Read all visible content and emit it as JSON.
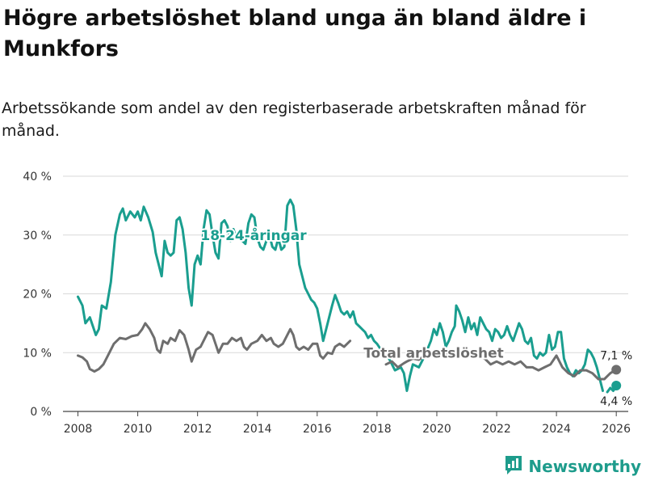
{
  "title": "Högre arbetslöshet bland unga än bland äldre i Munkfors",
  "subtitle": "Arbetssökande som andel av den registerbaserade arbetskraften månad för månad.",
  "brand": {
    "name": "Newsworthy",
    "icon": "bar-chart-logo-icon"
  },
  "colors": {
    "youth": "#1a9e8f",
    "total": "#6e6e6e",
    "grid": "#d9d9d9",
    "brand": "#1e9c8c"
  },
  "chart_data": {
    "type": "line",
    "ylim": [
      0,
      40
    ],
    "xlim": [
      2007.5,
      2026.4
    ],
    "yticks": [
      0,
      10,
      20,
      30,
      40
    ],
    "ytick_labels": [
      "0 %",
      "10 %",
      "20 %",
      "30 %",
      "40 %"
    ],
    "xticks": [
      2008,
      2010,
      2012,
      2014,
      2016,
      2018,
      2020,
      2022,
      2024,
      2026
    ],
    "xtick_labels": [
      "2008",
      "2010",
      "2012",
      "2014",
      "2016",
      "2018",
      "2020",
      "2022",
      "2024",
      "2026"
    ],
    "xlabel": "",
    "ylabel": "",
    "series": [
      {
        "name": "18-24-åringar",
        "label_x": 2012.1,
        "label_y": 30,
        "end_label": "4,4 %",
        "points": [
          [
            2008.0,
            19.5
          ],
          [
            2008.15,
            18.0
          ],
          [
            2008.25,
            15.0
          ],
          [
            2008.4,
            16.0
          ],
          [
            2008.6,
            13.0
          ],
          [
            2008.7,
            14.0
          ],
          [
            2008.8,
            18.0
          ],
          [
            2008.95,
            17.5
          ],
          [
            2009.1,
            22.0
          ],
          [
            2009.25,
            30.0
          ],
          [
            2009.4,
            33.5
          ],
          [
            2009.5,
            34.5
          ],
          [
            2009.6,
            32.5
          ],
          [
            2009.75,
            34.0
          ],
          [
            2009.9,
            33.0
          ],
          [
            2010.0,
            34.0
          ],
          [
            2010.1,
            32.5
          ],
          [
            2010.2,
            34.8
          ],
          [
            2010.35,
            33.0
          ],
          [
            2010.5,
            30.5
          ],
          [
            2010.6,
            27.0
          ],
          [
            2010.7,
            25.0
          ],
          [
            2010.8,
            23.0
          ],
          [
            2010.9,
            29.0
          ],
          [
            2011.0,
            27.0
          ],
          [
            2011.1,
            26.5
          ],
          [
            2011.2,
            27.0
          ],
          [
            2011.3,
            32.5
          ],
          [
            2011.4,
            33.0
          ],
          [
            2011.5,
            31.0
          ],
          [
            2011.6,
            27.0
          ],
          [
            2011.7,
            21.0
          ],
          [
            2011.8,
            18.0
          ],
          [
            2011.9,
            25.0
          ],
          [
            2012.0,
            26.5
          ],
          [
            2012.1,
            25.0
          ],
          [
            2012.2,
            31.0
          ],
          [
            2012.3,
            34.2
          ],
          [
            2012.4,
            33.5
          ],
          [
            2012.5,
            30.0
          ],
          [
            2012.6,
            27.0
          ],
          [
            2012.7,
            26.0
          ],
          [
            2012.8,
            32.0
          ],
          [
            2012.9,
            32.5
          ],
          [
            2013.0,
            31.5
          ],
          [
            2013.1,
            29.0
          ],
          [
            2013.2,
            31.0
          ],
          [
            2013.3,
            29.5
          ],
          [
            2013.4,
            30.5
          ],
          [
            2013.5,
            29.0
          ],
          [
            2013.6,
            28.5
          ],
          [
            2013.7,
            32.0
          ],
          [
            2013.8,
            33.5
          ],
          [
            2013.9,
            33.0
          ],
          [
            2014.0,
            29.5
          ],
          [
            2014.1,
            28.0
          ],
          [
            2014.2,
            27.5
          ],
          [
            2014.3,
            29.0
          ],
          [
            2014.4,
            30.0
          ],
          [
            2014.5,
            28.0
          ],
          [
            2014.6,
            27.5
          ],
          [
            2014.7,
            29.5
          ],
          [
            2014.8,
            27.5
          ],
          [
            2014.9,
            28.0
          ],
          [
            2015.0,
            35.0
          ],
          [
            2015.1,
            36.0
          ],
          [
            2015.2,
            35.0
          ],
          [
            2015.3,
            31.0
          ],
          [
            2015.4,
            25.0
          ],
          [
            2015.5,
            23.0
          ],
          [
            2015.6,
            21.0
          ],
          [
            2015.7,
            20.0
          ],
          [
            2015.8,
            19.0
          ],
          [
            2015.9,
            18.5
          ],
          [
            2016.0,
            17.5
          ],
          [
            2016.1,
            15.0
          ],
          [
            2016.2,
            12.0
          ],
          [
            2016.3,
            14.0
          ],
          [
            2016.4,
            16.0
          ],
          [
            2016.5,
            18.0
          ],
          [
            2016.6,
            19.8
          ],
          [
            2016.7,
            18.5
          ],
          [
            2016.8,
            17.0
          ],
          [
            2016.9,
            16.5
          ],
          [
            2017.0,
            17.0
          ],
          [
            2017.1,
            16.0
          ],
          [
            2017.2,
            17.0
          ],
          [
            2017.3,
            15.0
          ],
          [
            2017.4,
            14.5
          ],
          [
            2017.5,
            14.0
          ],
          [
            2017.6,
            13.5
          ],
          [
            2017.7,
            12.5
          ],
          [
            2017.8,
            13.0
          ],
          [
            2017.9,
            12.0
          ],
          [
            2018.0,
            11.5
          ],
          [
            2018.2,
            10.0
          ],
          [
            2018.4,
            9.0
          ],
          [
            2018.6,
            7.0
          ],
          [
            2018.8,
            7.5
          ],
          [
            2018.9,
            6.5
          ],
          [
            2019.0,
            3.5
          ],
          [
            2019.1,
            6.0
          ],
          [
            2019.2,
            8.0
          ],
          [
            2019.4,
            7.5
          ],
          [
            2019.6,
            9.5
          ],
          [
            2019.8,
            12.0
          ],
          [
            2019.9,
            14.0
          ],
          [
            2020.0,
            13.0
          ],
          [
            2020.1,
            15.0
          ],
          [
            2020.2,
            13.5
          ],
          [
            2020.3,
            11.0
          ],
          [
            2020.4,
            12.0
          ],
          [
            2020.5,
            13.5
          ],
          [
            2020.6,
            14.5
          ],
          [
            2020.65,
            18.0
          ],
          [
            2020.75,
            17.0
          ],
          [
            2020.85,
            15.5
          ],
          [
            2020.95,
            13.5
          ],
          [
            2021.05,
            16.0
          ],
          [
            2021.15,
            14.0
          ],
          [
            2021.25,
            15.0
          ],
          [
            2021.35,
            13.0
          ],
          [
            2021.45,
            16.0
          ],
          [
            2021.55,
            15.0
          ],
          [
            2021.65,
            14.0
          ],
          [
            2021.75,
            13.5
          ],
          [
            2021.85,
            12.0
          ],
          [
            2021.95,
            14.0
          ],
          [
            2022.05,
            13.5
          ],
          [
            2022.15,
            12.5
          ],
          [
            2022.25,
            13.0
          ],
          [
            2022.35,
            14.5
          ],
          [
            2022.45,
            13.0
          ],
          [
            2022.55,
            12.0
          ],
          [
            2022.65,
            13.5
          ],
          [
            2022.75,
            15.0
          ],
          [
            2022.85,
            14.0
          ],
          [
            2022.95,
            12.0
          ],
          [
            2023.05,
            11.5
          ],
          [
            2023.15,
            12.5
          ],
          [
            2023.25,
            9.5
          ],
          [
            2023.35,
            9.0
          ],
          [
            2023.45,
            10.0
          ],
          [
            2023.55,
            9.5
          ],
          [
            2023.65,
            10.0
          ],
          [
            2023.75,
            13.0
          ],
          [
            2023.85,
            10.5
          ],
          [
            2023.95,
            11.0
          ],
          [
            2024.05,
            13.5
          ],
          [
            2024.15,
            13.5
          ],
          [
            2024.25,
            9.0
          ],
          [
            2024.35,
            7.5
          ],
          [
            2024.45,
            6.5
          ],
          [
            2024.55,
            6.0
          ],
          [
            2024.65,
            7.0
          ],
          [
            2024.75,
            6.5
          ],
          [
            2024.85,
            7.0
          ],
          [
            2024.95,
            8.0
          ],
          [
            2025.05,
            10.5
          ],
          [
            2025.15,
            10.0
          ],
          [
            2025.25,
            9.0
          ],
          [
            2025.35,
            7.5
          ],
          [
            2025.45,
            5.5
          ],
          [
            2025.55,
            3.5
          ]
        ],
        "points_after_gap": [
          [
            2025.7,
            3.3
          ],
          [
            2025.8,
            4.0
          ],
          [
            2025.9,
            3.5
          ],
          [
            2026.0,
            4.4
          ]
        ]
      },
      {
        "name": "Total arbetslöshet",
        "label_x": 2017.55,
        "label_y": 10,
        "end_label": "7,1 %",
        "points": [
          [
            2008.0,
            9.5
          ],
          [
            2008.15,
            9.2
          ],
          [
            2008.3,
            8.5
          ],
          [
            2008.4,
            7.2
          ],
          [
            2008.55,
            6.8
          ],
          [
            2008.7,
            7.2
          ],
          [
            2008.85,
            8.0
          ],
          [
            2009.0,
            9.5
          ],
          [
            2009.2,
            11.5
          ],
          [
            2009.4,
            12.5
          ],
          [
            2009.6,
            12.3
          ],
          [
            2009.8,
            12.8
          ],
          [
            2010.0,
            13.0
          ],
          [
            2010.15,
            14.0
          ],
          [
            2010.25,
            15.0
          ],
          [
            2010.4,
            14.0
          ],
          [
            2010.55,
            12.5
          ],
          [
            2010.65,
            10.5
          ],
          [
            2010.75,
            10.0
          ],
          [
            2010.85,
            12.0
          ],
          [
            2011.0,
            11.5
          ],
          [
            2011.1,
            12.5
          ],
          [
            2011.25,
            12.0
          ],
          [
            2011.4,
            13.8
          ],
          [
            2011.55,
            13.0
          ],
          [
            2011.7,
            10.5
          ],
          [
            2011.8,
            8.5
          ],
          [
            2011.95,
            10.5
          ],
          [
            2012.1,
            11.0
          ],
          [
            2012.25,
            12.5
          ],
          [
            2012.35,
            13.5
          ],
          [
            2012.5,
            13.0
          ],
          [
            2012.6,
            11.5
          ],
          [
            2012.7,
            10.0
          ],
          [
            2012.85,
            11.5
          ],
          [
            2013.0,
            11.5
          ],
          [
            2013.15,
            12.5
          ],
          [
            2013.3,
            12.0
          ],
          [
            2013.45,
            12.5
          ],
          [
            2013.55,
            11.0
          ],
          [
            2013.65,
            10.5
          ],
          [
            2013.8,
            11.5
          ],
          [
            2014.0,
            12.0
          ],
          [
            2014.15,
            13.0
          ],
          [
            2014.3,
            12.0
          ],
          [
            2014.45,
            12.5
          ],
          [
            2014.55,
            11.5
          ],
          [
            2014.7,
            11.0
          ],
          [
            2014.85,
            11.5
          ],
          [
            2015.0,
            13.0
          ],
          [
            2015.1,
            14.0
          ],
          [
            2015.2,
            13.0
          ],
          [
            2015.3,
            11.0
          ],
          [
            2015.4,
            10.5
          ],
          [
            2015.55,
            11.0
          ],
          [
            2015.7,
            10.5
          ],
          [
            2015.85,
            11.5
          ],
          [
            2016.0,
            11.5
          ],
          [
            2016.1,
            9.5
          ],
          [
            2016.2,
            9.0
          ],
          [
            2016.35,
            10.0
          ],
          [
            2016.5,
            9.8
          ],
          [
            2016.6,
            11.0
          ],
          [
            2016.75,
            11.5
          ],
          [
            2016.9,
            11.0
          ],
          [
            2017.0,
            11.5
          ],
          [
            2017.1,
            12.0
          ]
        ],
        "points_after_gap": [
          [
            2018.3,
            8.0
          ],
          [
            2018.5,
            8.5
          ],
          [
            2018.7,
            7.5
          ],
          [
            2018.9,
            8.2
          ],
          [
            2019.0,
            8.5
          ],
          [
            2019.2,
            9.0
          ],
          [
            2019.4,
            8.8
          ],
          [
            2019.6,
            9.5
          ],
          [
            2019.8,
            10.0
          ],
          [
            2020.0,
            9.5
          ],
          [
            2020.2,
            9.5
          ],
          [
            2020.4,
            9.8
          ],
          [
            2020.6,
            9.5
          ],
          [
            2020.8,
            10.0
          ],
          [
            2021.0,
            9.5
          ],
          [
            2021.2,
            10.0
          ],
          [
            2021.4,
            9.5
          ],
          [
            2021.6,
            9.0
          ],
          [
            2021.8,
            8.0
          ],
          [
            2022.0,
            8.5
          ],
          [
            2022.2,
            8.0
          ],
          [
            2022.4,
            8.5
          ],
          [
            2022.6,
            8.0
          ],
          [
            2022.8,
            8.5
          ],
          [
            2023.0,
            7.5
          ],
          [
            2023.2,
            7.5
          ],
          [
            2023.4,
            7.0
          ],
          [
            2023.6,
            7.5
          ],
          [
            2023.8,
            8.0
          ],
          [
            2024.0,
            9.5
          ],
          [
            2024.2,
            7.5
          ],
          [
            2024.4,
            6.5
          ],
          [
            2024.6,
            6.0
          ],
          [
            2024.8,
            7.0
          ],
          [
            2025.0,
            7.0
          ],
          [
            2025.2,
            6.5
          ],
          [
            2025.4,
            5.5
          ],
          [
            2025.6,
            5.5
          ],
          [
            2025.8,
            6.5
          ],
          [
            2026.0,
            7.1
          ]
        ]
      }
    ]
  }
}
